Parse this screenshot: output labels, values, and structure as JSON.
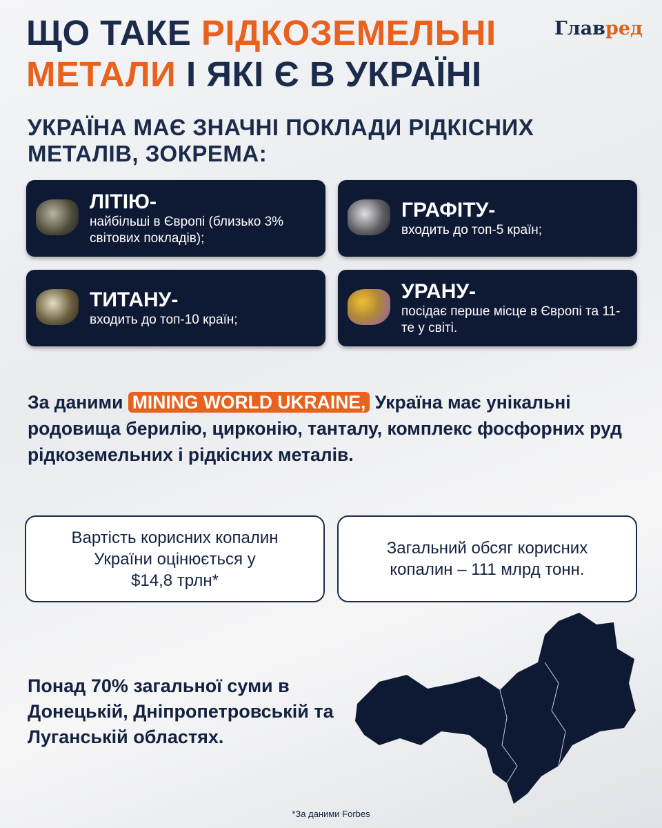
{
  "title": {
    "part1": "ЩО ТАКЕ ",
    "part2": "РІДКОЗЕМЕЛЬНІ",
    "part3": "МЕТАЛИ",
    "part4": " І ЯКІ Є В УКРАЇНІ"
  },
  "logo": {
    "part1": "Глав",
    "part2": "ред"
  },
  "subtitle": {
    "line1": "УКРАЇНА МАЄ ЗНАЧНІ ПОКЛАДИ РІДКІСНИХ",
    "line2": "МЕТАЛІВ, ЗОКРЕМА:"
  },
  "cards": [
    {
      "heading": "ЛІТІЮ-",
      "text": "найбільші в Європі (близько 3% світових покладів);"
    },
    {
      "heading": "ГРАФІТУ-",
      "text": "входить до топ-5 країн;"
    },
    {
      "heading": "ТИТАНУ-",
      "text": "входить до топ-10 країн;"
    },
    {
      "heading": "УРАНУ-",
      "text": "посідає перше місце в Європі та 11-те у світі."
    }
  ],
  "paragraph": {
    "prefix": "За даними ",
    "highlight": "MINING WORLD UKRAINE,",
    "suffix": " Україна має унікальні родовища берилію, цирконію, танталу, комплекс фосфорних руд рідкоземельних і рідкісних металів."
  },
  "boxes": [
    {
      "text": "Вартість корисних копалин України оцінюється у $14,8 трлн*"
    },
    {
      "text": "Загальний обсяг корисних копалин – 111 млрд тонн."
    }
  ],
  "bottom_text": "Понад 70% загальної суми в Донецькій, Дніпропетровській та Луганській областях.",
  "footnote": "*За даними Forbes",
  "colors": {
    "accent": "#e8611d",
    "navy": "#0e1a34"
  }
}
